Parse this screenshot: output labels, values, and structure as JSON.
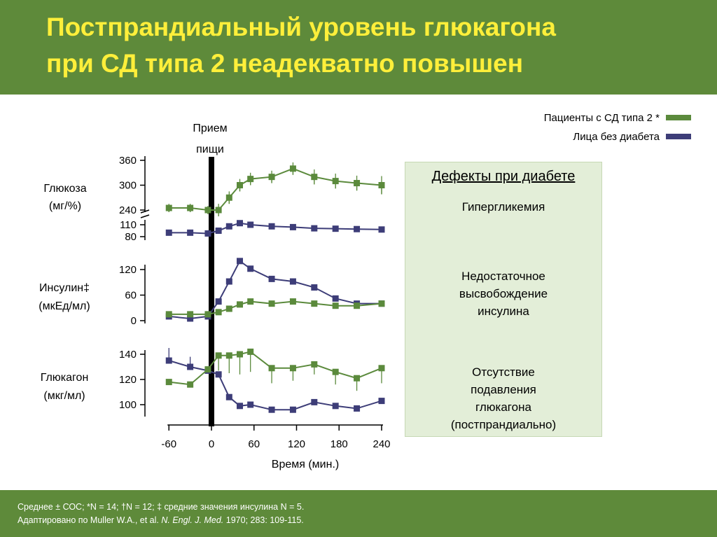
{
  "slide": {
    "title_line1": "Постпрандиальный уровень глюкагона",
    "title_line2": "при СД типа 2 неадекватно повышен",
    "footer_line1": "Среднее ± СОС; *N = 14; †N = 12; ‡ средние значения инсулина N = 5.",
    "footer_line2_prefix": "Адаптировано по Muller W.A., et al. ",
    "footer_line2_journal": "N. Engl. J. Med.",
    "footer_line2_suffix": " 1970; 283: 109-115."
  },
  "defects": {
    "title": "Дефекты при диабете",
    "items": [
      "Гипергликемия",
      "Недостаточное\nвысвобождение\nинсулина",
      "Отсутствие\nподавления\nглюкагона\n(постпрандиально)"
    ]
  },
  "chart_data": {
    "type": "line",
    "xlabel": "Время (мин.)",
    "x_ticks": [
      -60,
      0,
      60,
      120,
      180,
      240
    ],
    "x": [
      -60,
      -30,
      -5,
      10,
      25,
      40,
      55,
      85,
      115,
      145,
      175,
      205,
      240
    ],
    "meal_label_line1": "Прием",
    "meal_label_line2": "пищи",
    "meal_x": 0,
    "colors": {
      "t2d": "#5b8a3c",
      "healthy": "#3d3d78"
    },
    "legend": [
      {
        "key": "t2d",
        "name": "Пациенты с СД типа 2 *"
      },
      {
        "key": "healthy",
        "name": "Лица без диабета"
      }
    ],
    "panels": [
      {
        "id": "glucose",
        "ylabel_line1": "Глюкоза",
        "ylabel_line2": "(мг/%)",
        "broken_axis": true,
        "upper_ticks": [
          240,
          300,
          360
        ],
        "lower_ticks": [
          80,
          110
        ],
        "series": {
          "t2d": [
            245,
            245,
            240,
            240,
            270,
            300,
            315,
            320,
            340,
            320,
            310,
            305,
            300
          ],
          "healthy": [
            90,
            90,
            88,
            95,
            106,
            114,
            110,
            106,
            104,
            101,
            100,
            99,
            98
          ]
        },
        "t2d_err": [
          10,
          10,
          10,
          15,
          15,
          15,
          15,
          15,
          15,
          18,
          18,
          18,
          22
        ]
      },
      {
        "id": "insulin",
        "ylabel_line1": "Инсулин‡",
        "ylabel_line2": "(мкЕд/мл)",
        "yticks": [
          0,
          60,
          120
        ],
        "ylim": [
          0,
          120
        ],
        "series": {
          "t2d": [
            15,
            15,
            15,
            20,
            28,
            38,
            45,
            40,
            45,
            40,
            35,
            35,
            40
          ],
          "healthy": [
            10,
            5,
            10,
            45,
            92,
            140,
            122,
            98,
            92,
            78,
            52,
            40,
            40
          ]
        }
      },
      {
        "id": "glucagon",
        "ylabel_line1": "Глюкагон",
        "ylabel_line2": "(мкг/мл)",
        "yticks": [
          100,
          120,
          140
        ],
        "ylim": [
          100,
          140
        ],
        "series": {
          "t2d": [
            118,
            116,
            128,
            139,
            139,
            140,
            142,
            129,
            129,
            132,
            126,
            121,
            129
          ],
          "healthy": [
            135,
            130,
            127,
            124,
            106,
            99,
            100,
            96,
            96,
            102,
            99,
            97,
            103
          ]
        },
        "t2d_err": [
          0,
          0,
          0,
          12,
          14,
          16,
          16,
          12,
          10,
          8,
          10,
          10,
          12
        ],
        "healthy_err": [
          10,
          8,
          0,
          0,
          0,
          0,
          0,
          0,
          0,
          0,
          0,
          0,
          0
        ]
      }
    ]
  }
}
